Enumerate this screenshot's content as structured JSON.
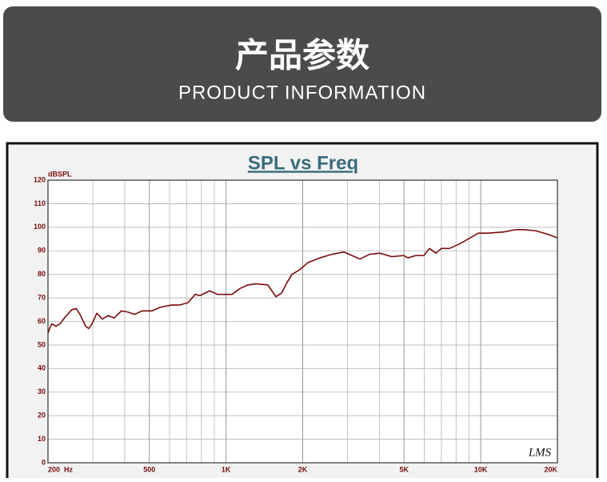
{
  "header": {
    "title": "产品参数",
    "subtitle": "PRODUCT INFORMATION"
  },
  "chart_data": {
    "type": "line",
    "title": "SPL vs Freq",
    "y_label": "dBSPL",
    "watermark": "LMS",
    "x_scale": "log",
    "grid": true,
    "x": [
      200,
      203,
      207,
      215,
      223,
      234,
      248,
      258,
      267,
      281,
      289,
      298,
      311,
      327,
      344,
      364,
      389,
      412,
      437,
      469,
      512,
      550,
      613,
      659,
      709,
      757,
      790,
      862,
      926,
      1055,
      1134,
      1219,
      1310,
      1460,
      1514,
      1570,
      1651,
      1724,
      1814,
      1950,
      2096,
      2337,
      2604,
      2902,
      3120,
      3354,
      3658,
      4018,
      4478,
      4991,
      5177,
      5564,
      5982,
      6290,
      6666,
      7010,
      7536,
      8280,
      9096,
      9780,
      10666,
      12324,
      13730,
      14762,
      16456,
      18336,
      20000
    ],
    "series": [
      {
        "name": "SPL",
        "color": "#7a0c0c",
        "values": [
          55,
          57,
          59,
          58,
          59,
          62,
          65,
          65.5,
          63,
          58,
          57,
          59,
          63.5,
          61,
          62.5,
          61.5,
          64.5,
          64,
          63,
          64.5,
          64.5,
          66,
          67,
          67,
          68,
          71.5,
          71,
          73,
          71.5,
          71.5,
          74,
          75.5,
          76,
          75.5,
          73,
          70.5,
          72,
          76,
          80,
          82,
          85,
          87,
          88.5,
          89.5,
          88,
          86.5,
          88.5,
          89,
          87.5,
          88,
          87,
          88,
          88,
          91,
          89,
          91,
          91,
          93,
          95.5,
          97.5,
          97.5,
          98,
          99,
          99,
          98.5,
          97,
          95.5
        ]
      }
    ],
    "xlim": [
      200,
      20000
    ],
    "xticks": [
      {
        "value": 200,
        "label": "200  Hz"
      },
      500,
      {
        "value": 1000,
        "label": "1K"
      },
      {
        "value": 2000,
        "label": "2K"
      },
      {
        "value": 5000,
        "label": "5K"
      },
      {
        "value": 10000,
        "label": "10K"
      },
      {
        "value": 20000,
        "label": "20K"
      }
    ],
    "minor_xticks": [
      300,
      400,
      600,
      700,
      800,
      900,
      3000,
      4000,
      6000,
      7000,
      8000,
      9000
    ],
    "ylim": [
      0,
      120
    ],
    "yticks": [
      0,
      10,
      20,
      30,
      40,
      50,
      60,
      70,
      80,
      90,
      100,
      110,
      120
    ]
  }
}
